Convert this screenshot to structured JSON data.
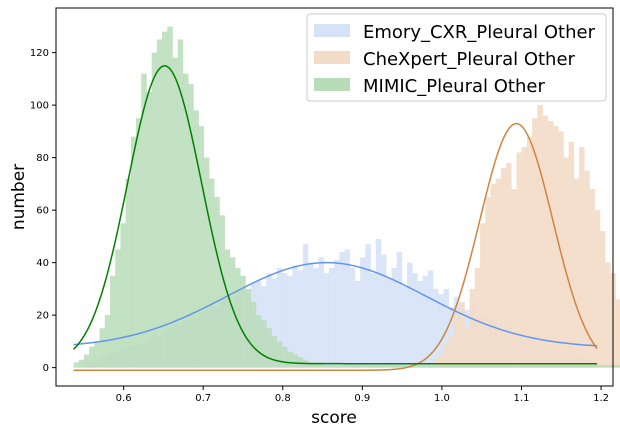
{
  "chart_data": {
    "type": "histogram",
    "xlabel": "score",
    "ylabel": "number",
    "xlim": [
      0.515,
      1.215
    ],
    "ylim": [
      -7,
      137
    ],
    "x_ticks": [
      "0.6",
      "0.7",
      "0.8",
      "0.9",
      "1.0",
      "1.1",
      "1.2"
    ],
    "y_ticks": [
      "0",
      "20",
      "40",
      "60",
      "80",
      "100",
      "120"
    ],
    "grid": false,
    "legend_position": "top-right",
    "series": [
      {
        "name": "Emory_CXR_Pleural Other",
        "hist_color": "#d6e2f7",
        "line_color": "#6495ed",
        "bins": {
          "start": 0.537,
          "width": 0.00655,
          "counts": [
            0,
            0,
            2,
            2,
            3,
            4,
            5,
            6,
            6,
            7,
            8,
            8,
            9,
            10,
            11,
            13,
            12,
            14,
            15,
            17,
            16,
            18,
            20,
            19,
            21,
            22,
            24,
            23,
            26,
            27,
            25,
            29,
            30,
            28,
            32,
            33,
            31,
            36,
            34,
            38,
            36,
            35,
            39,
            37,
            47,
            40,
            38,
            42,
            36,
            38,
            41,
            44,
            45,
            38,
            33,
            42,
            47,
            36,
            49,
            43,
            34,
            38,
            44,
            31,
            40,
            36,
            33,
            35,
            37,
            30,
            28,
            30,
            23,
            27,
            25,
            22,
            24,
            21,
            20,
            19,
            18,
            17,
            15,
            16,
            14,
            13,
            12,
            11,
            10,
            9,
            9,
            8,
            7,
            6,
            6,
            5,
            4,
            4,
            3,
            3
          ]
        },
        "fit": {
          "mean": 0.855,
          "std": 0.125,
          "peak": 40,
          "base": 7.5
        }
      },
      {
        "name": "CheXpert_Pleural Other",
        "hist_color": "#f2dcc7",
        "line_color": "#cd853f",
        "bins": {
          "start": 0.537,
          "width": 0.00655,
          "counts": [
            0,
            0,
            0,
            0,
            0,
            0,
            0,
            0,
            0,
            0,
            0,
            0,
            0,
            0,
            0,
            0,
            0,
            0,
            0,
            0,
            0,
            0,
            0,
            0,
            0,
            0,
            0,
            0,
            0,
            0,
            0,
            0,
            0,
            0,
            0,
            0,
            0,
            0,
            0,
            0,
            0,
            0,
            0,
            0,
            0,
            0,
            0,
            0,
            0,
            0,
            0,
            0,
            0,
            0,
            0,
            0,
            0,
            0,
            0,
            0,
            0,
            0,
            0,
            0,
            0,
            0,
            0,
            0,
            1,
            3,
            5,
            9,
            12,
            20,
            25,
            15,
            30,
            38,
            55,
            65,
            70,
            72,
            76,
            78,
            68,
            82,
            84,
            88,
            95,
            100,
            96,
            94,
            92,
            90,
            80,
            86,
            72,
            84,
            75,
            68,
            60,
            52,
            40,
            36,
            26,
            22,
            12,
            9,
            6,
            4
          ]
        },
        "fit": {
          "mean": 1.0935,
          "std": 0.046,
          "peak": 93,
          "base": -1
        }
      },
      {
        "name": "MIMIC_Pleural Other",
        "hist_color": "#b8dcb8",
        "line_color": "#008000",
        "bins": {
          "start": 0.537,
          "width": 0.00655,
          "counts": [
            2,
            3,
            5,
            8,
            10,
            15,
            20,
            35,
            45,
            55,
            72,
            88,
            95,
            112,
            105,
            120,
            125,
            128,
            130,
            118,
            125,
            112,
            108,
            98,
            92,
            80,
            72,
            65,
            58,
            45,
            42,
            38,
            35,
            30,
            25,
            20,
            18,
            15,
            12,
            10,
            8,
            6,
            5,
            4,
            3,
            2,
            2,
            2,
            1,
            1,
            1,
            1,
            1,
            1,
            1,
            1,
            1,
            1,
            1,
            1,
            1,
            1,
            1,
            1,
            1,
            1,
            1,
            1,
            1,
            1,
            1,
            1,
            1,
            1,
            1,
            1,
            1,
            1,
            1,
            1,
            1,
            1,
            1,
            1,
            1,
            1,
            1,
            1,
            1,
            1,
            1,
            1,
            1,
            1,
            1,
            1,
            1,
            1,
            1,
            1,
            1,
            1,
            1,
            1,
            1,
            1,
            1,
            1,
            1,
            1
          ]
        },
        "fit": {
          "mean": 0.6515,
          "std": 0.0465,
          "peak": 115,
          "base": 1.5
        }
      }
    ]
  }
}
